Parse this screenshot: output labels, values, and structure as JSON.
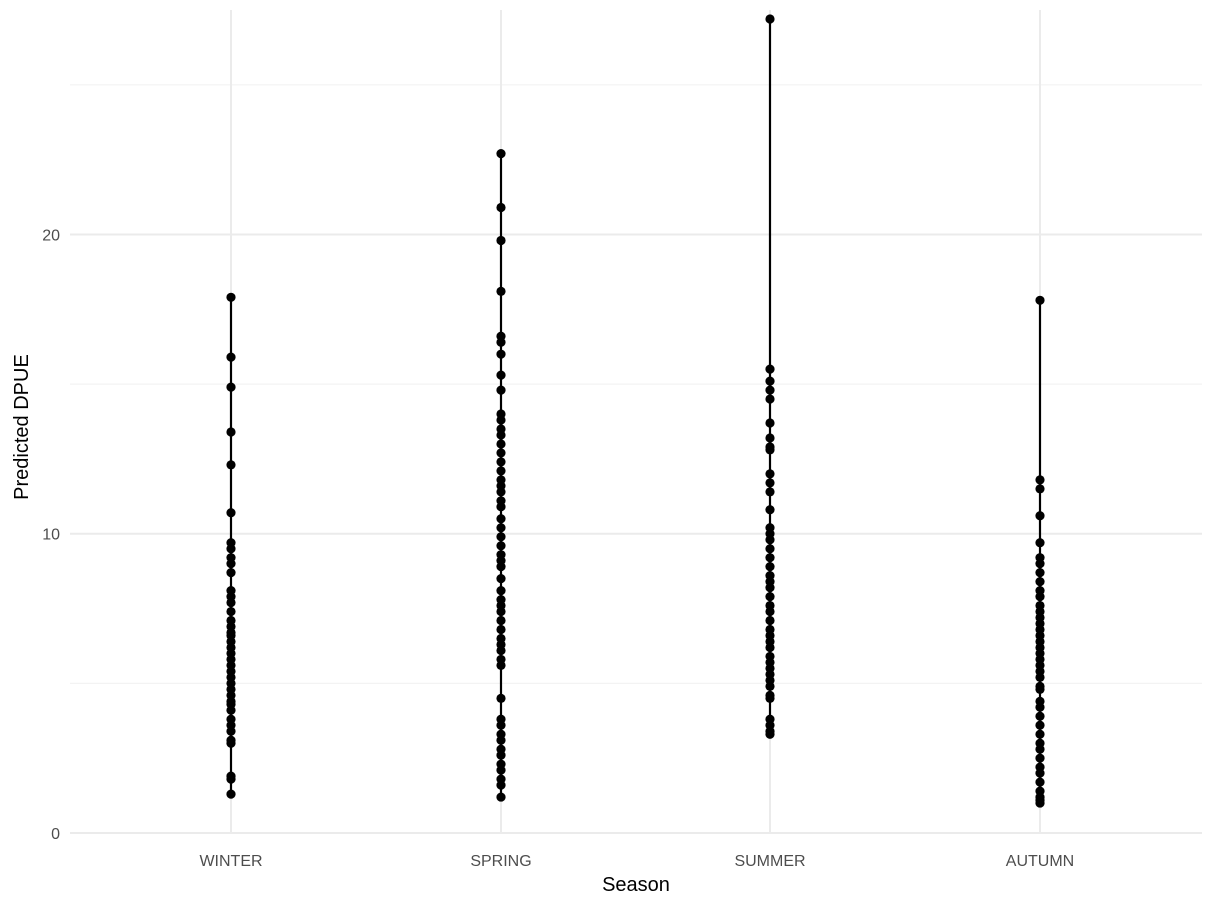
{
  "chart_data": {
    "type": "scatter",
    "xlabel": "Season",
    "ylabel": "Predicted DPUE",
    "categories": [
      "WINTER",
      "SPRING",
      "SUMMER",
      "AUTUMN"
    ],
    "ylim": [
      0,
      27.5
    ],
    "y_ticks": [
      0,
      10,
      20
    ],
    "y_tick_labels": [
      "0",
      "10",
      "20"
    ],
    "grid": true,
    "legend": "none",
    "range_lines": true,
    "series": [
      {
        "category": "WINTER",
        "values": [
          17.9,
          15.9,
          14.9,
          13.4,
          12.3,
          10.7,
          9.7,
          9.5,
          9.2,
          9.0,
          8.7,
          8.1,
          7.9,
          7.7,
          7.4,
          7.1,
          6.9,
          6.7,
          6.6,
          6.4,
          6.2,
          6.0,
          5.8,
          5.6,
          5.4,
          5.2,
          5.0,
          4.8,
          4.6,
          4.4,
          4.3,
          4.1,
          3.8,
          3.6,
          3.4,
          3.1,
          3.0,
          1.9,
          1.8,
          1.3
        ]
      },
      {
        "category": "SPRING",
        "values": [
          22.7,
          20.9,
          19.8,
          18.1,
          16.6,
          16.4,
          16.0,
          15.3,
          14.8,
          14.0,
          13.8,
          13.5,
          13.3,
          13.0,
          12.7,
          12.4,
          12.1,
          11.8,
          11.6,
          11.4,
          11.1,
          10.9,
          10.5,
          10.2,
          9.9,
          9.6,
          9.3,
          9.1,
          8.9,
          8.5,
          8.1,
          7.8,
          7.6,
          7.4,
          7.1,
          6.8,
          6.5,
          6.3,
          6.1,
          5.8,
          5.6,
          4.5,
          3.8,
          3.6,
          3.3,
          3.1,
          2.8,
          2.6,
          2.3,
          2.1,
          1.8,
          1.6,
          1.2
        ]
      },
      {
        "category": "SUMMER",
        "values": [
          27.2,
          15.5,
          15.1,
          14.8,
          14.5,
          13.7,
          13.2,
          12.9,
          12.8,
          12.0,
          11.7,
          11.4,
          10.8,
          10.2,
          10.0,
          9.8,
          9.5,
          9.2,
          8.9,
          8.6,
          8.4,
          8.2,
          7.9,
          7.6,
          7.4,
          7.1,
          6.8,
          6.6,
          6.4,
          6.2,
          5.9,
          5.7,
          5.5,
          5.3,
          5.1,
          4.9,
          4.6,
          4.5,
          3.8,
          3.6,
          3.4,
          3.3
        ]
      },
      {
        "category": "AUTUMN",
        "values": [
          17.8,
          11.8,
          11.5,
          10.6,
          9.7,
          9.2,
          9.0,
          8.7,
          8.4,
          8.1,
          7.9,
          7.6,
          7.4,
          7.2,
          7.0,
          6.8,
          6.6,
          6.4,
          6.2,
          6.0,
          5.8,
          5.6,
          5.4,
          5.2,
          4.9,
          4.8,
          4.4,
          4.2,
          3.9,
          3.6,
          3.3,
          3.0,
          2.8,
          2.5,
          2.2,
          2.0,
          1.7,
          1.4,
          1.2,
          1.1,
          1.0
        ]
      }
    ]
  },
  "style": {
    "point_color": "#000000",
    "line_color": "#000000",
    "major_grid_color": "#ebebeb",
    "minor_grid_color": "#f3f3f3"
  }
}
